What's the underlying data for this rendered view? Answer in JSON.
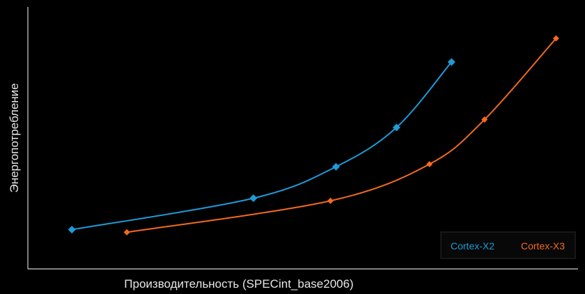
{
  "chart_data": {
    "type": "line",
    "title": "",
    "xlabel": "Производительность (SPECint_base2006)",
    "ylabel": "Энергопотребление",
    "xlim": [
      0,
      100
    ],
    "ylim": [
      0,
      100
    ],
    "grid": false,
    "legend_placement": "bottom-right",
    "series": [
      {
        "name": "Cortex-X2",
        "color": "#1e9bd7",
        "marker": "diamond",
        "points": [
          [
            8,
            15
          ],
          [
            41,
            27
          ],
          [
            56,
            39
          ],
          [
            67,
            54
          ],
          [
            77,
            79
          ]
        ]
      },
      {
        "name": "Cortex-X3",
        "color": "#f36a1d",
        "marker": "diamond",
        "points": [
          [
            18,
            14
          ],
          [
            55,
            26
          ],
          [
            73,
            40
          ],
          [
            83,
            57
          ],
          [
            96,
            88
          ]
        ]
      }
    ]
  }
}
